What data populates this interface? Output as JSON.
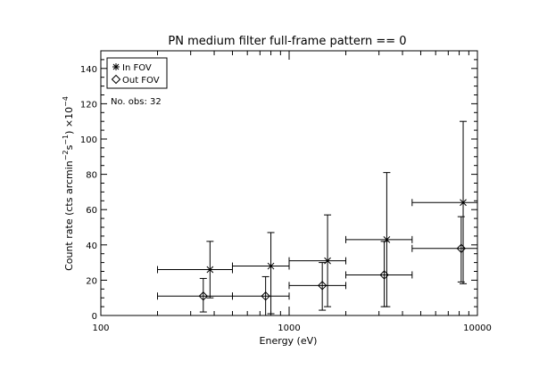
{
  "chart_data": {
    "type": "scatter",
    "title": "PN medium filter full-frame pattern == 0",
    "xlabel": "Energy (eV)",
    "ylabel": "Count rate (cts arcmin",
    "ylabel_sup1": "−2",
    "ylabel_mid": "s",
    "ylabel_sup2": "−1",
    "ylabel_end": ") ×10",
    "ylabel_sup3": "−4",
    "x_scale": "log",
    "xlim": [
      100,
      10000
    ],
    "ylim": [
      0,
      150
    ],
    "x_ticks": [
      100,
      1000,
      10000
    ],
    "x_tick_labels": [
      "100",
      "1000",
      "10000"
    ],
    "y_ticks": [
      0,
      20,
      40,
      60,
      80,
      100,
      120,
      140
    ],
    "y_tick_labels": [
      "0",
      "20",
      "40",
      "60",
      "80",
      "100",
      "120",
      "140"
    ],
    "grid": false,
    "legend_placement": "top-left",
    "annotation": "No. obs: 32",
    "series": [
      {
        "name": "In FOV",
        "marker": "asterisk",
        "points": [
          {
            "x": 380,
            "xlo": 200,
            "xhi": 500,
            "y": 26,
            "ylo": 10,
            "yhi": 42
          },
          {
            "x": 800,
            "xlo": 500,
            "xhi": 1000,
            "y": 28,
            "ylo": 1,
            "yhi": 47
          },
          {
            "x": 1600,
            "xlo": 1000,
            "xhi": 2000,
            "y": 31,
            "ylo": 5,
            "yhi": 57
          },
          {
            "x": 3300,
            "xlo": 2000,
            "xhi": 4500,
            "y": 43,
            "ylo": 5,
            "yhi": 81
          },
          {
            "x": 8400,
            "xlo": 4500,
            "xhi": 10000,
            "y": 64,
            "ylo": 18,
            "yhi": 110
          }
        ]
      },
      {
        "name": "Out FOV",
        "marker": "diamond",
        "points": [
          {
            "x": 350,
            "xlo": 200,
            "xhi": 500,
            "y": 11,
            "ylo": 2,
            "yhi": 21
          },
          {
            "x": 750,
            "xlo": 500,
            "xhi": 1000,
            "y": 11,
            "ylo": 0,
            "yhi": 22
          },
          {
            "x": 1500,
            "xlo": 1000,
            "xhi": 2000,
            "y": 17,
            "ylo": 3,
            "yhi": 30
          },
          {
            "x": 3200,
            "xlo": 2000,
            "xhi": 4500,
            "y": 23,
            "ylo": 5,
            "yhi": 42
          },
          {
            "x": 8200,
            "xlo": 4500,
            "xhi": 10000,
            "y": 38,
            "ylo": 19,
            "yhi": 56
          }
        ]
      }
    ]
  }
}
